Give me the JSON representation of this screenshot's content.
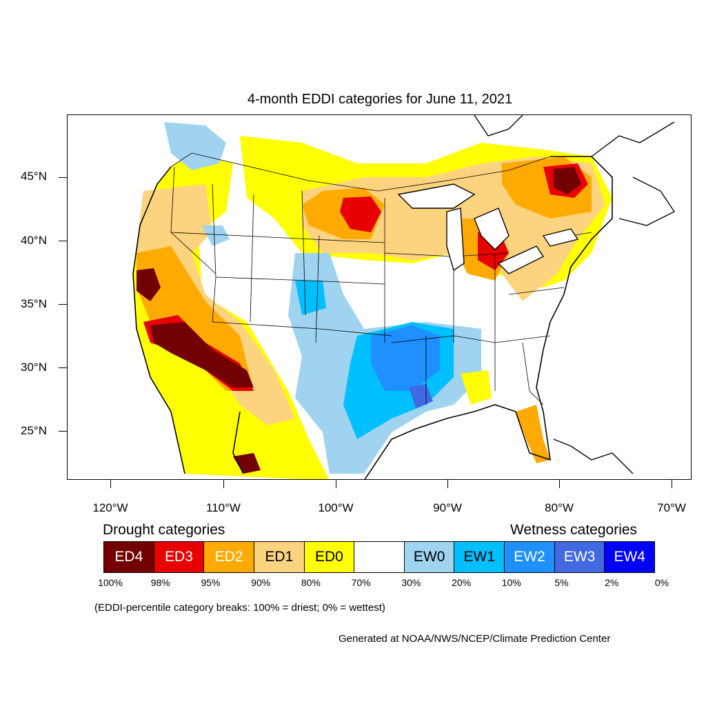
{
  "title": "4-month EDDI categories for June 11, 2021",
  "axes": {
    "latitude_labels": [
      "45°N",
      "40°N",
      "35°N",
      "30°N",
      "25°N"
    ],
    "longitude_labels": [
      "120°W",
      "110°W",
      "100°W",
      "90°W",
      "80°W",
      "70°W"
    ]
  },
  "legend": {
    "drought_heading": "Drought categories",
    "wetness_heading": "Wetness categories",
    "categories": [
      {
        "label": "ED4",
        "color": "#730000",
        "text_color": "#ffffff"
      },
      {
        "label": "ED3",
        "color": "#e60000",
        "text_color": "#ffffff"
      },
      {
        "label": "ED2",
        "color": "#ffaa00",
        "text_color": "#ffffff"
      },
      {
        "label": "ED1",
        "color": "#fcd37f",
        "text_color": "#000000"
      },
      {
        "label": "ED0",
        "color": "#ffff00",
        "text_color": "#000000"
      },
      {
        "label": "",
        "color": "#ffffff",
        "text_color": "#000000"
      },
      {
        "label": "EW0",
        "color": "#9fd3f0",
        "text_color": "#000000"
      },
      {
        "label": "EW1",
        "color": "#00bfff",
        "text_color": "#000000"
      },
      {
        "label": "EW2",
        "color": "#1e90ff",
        "text_color": "#ffffff"
      },
      {
        "label": "EW3",
        "color": "#4169e1",
        "text_color": "#ffffff"
      },
      {
        "label": "EW4",
        "color": "#0000ff",
        "text_color": "#ffffff"
      }
    ],
    "percentiles": [
      "100%",
      "98%",
      "95%",
      "90%",
      "80%",
      "70%",
      "30%",
      "20%",
      "10%",
      "5%",
      "2%",
      "0%"
    ]
  },
  "note": "(EDDI-percentile category breaks: 100% = driest; 0% = wettest)",
  "credit": "Generated at NOAA/NWS/NCEP/Climate Prediction Center"
}
